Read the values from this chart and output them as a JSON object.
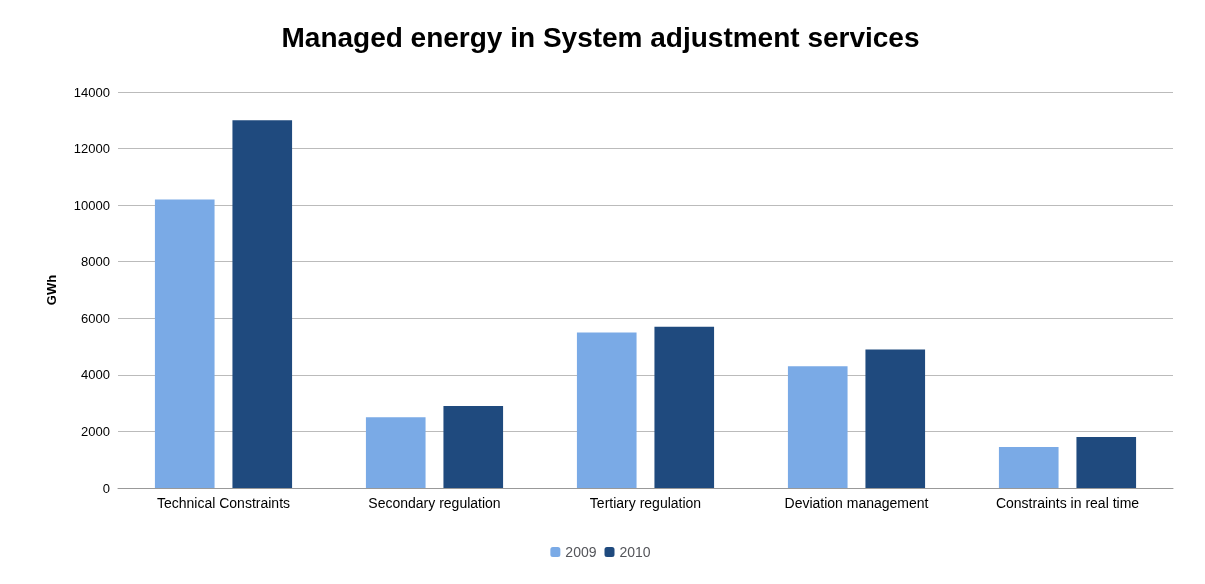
{
  "chart_data": {
    "type": "bar",
    "title": "Managed energy in System adjustment services",
    "ylabel": "GWh",
    "categories": [
      "Technical Constraints",
      "Secondary regulation",
      "Tertiary regulation",
      "Deviation management",
      "Constraints in real time"
    ],
    "series": [
      {
        "name": "2009",
        "color": "#7aaae6",
        "values": [
          10200,
          2500,
          5500,
          4300,
          1450
        ]
      },
      {
        "name": "2010",
        "color": "#1f4a7e",
        "values": [
          13000,
          2900,
          5700,
          4900,
          1800
        ]
      }
    ],
    "ylim": [
      0,
      14000
    ],
    "yticks": [
      0,
      2000,
      4000,
      6000,
      8000,
      10000,
      12000,
      14000
    ],
    "grid": "y",
    "legend": "bottom"
  }
}
